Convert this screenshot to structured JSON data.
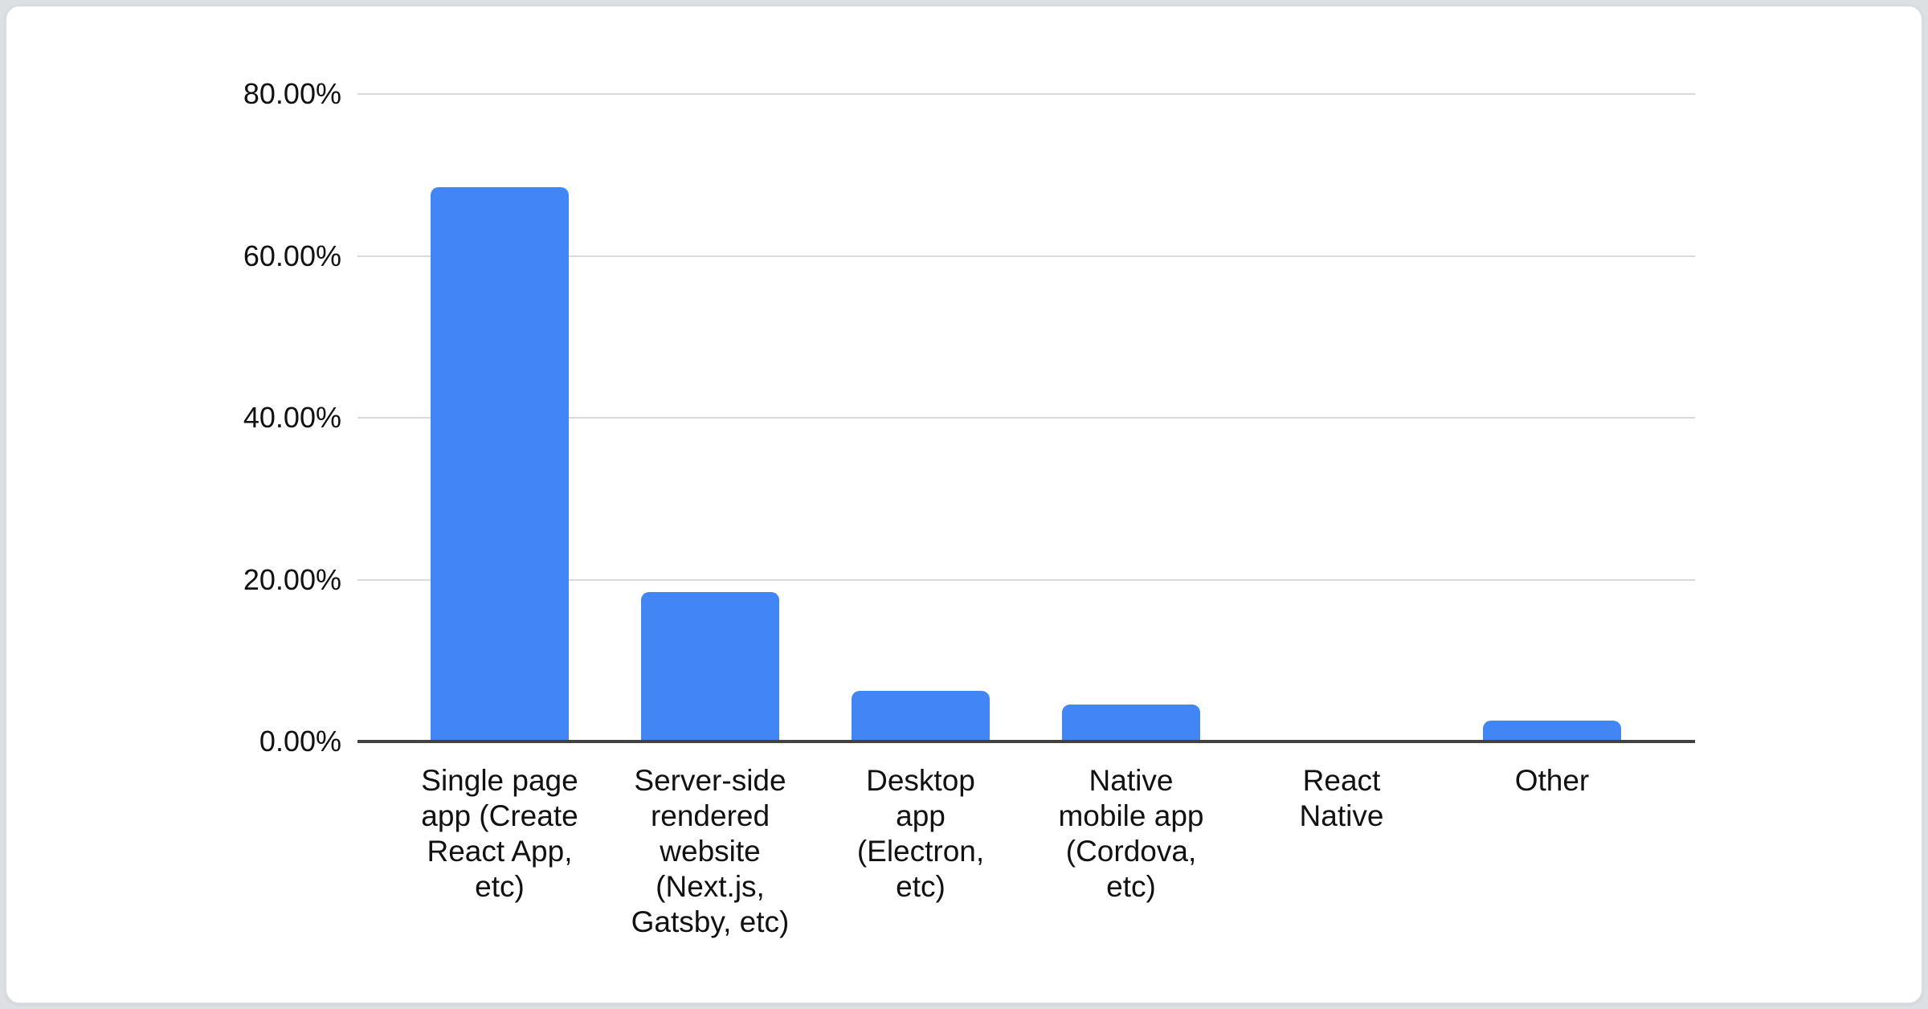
{
  "page": {
    "outer_background": "#dcdfe3",
    "card_background": "#ffffff",
    "card_border_color": "#d8dbde"
  },
  "chart_data": {
    "type": "bar",
    "title": "",
    "xlabel": "",
    "ylabel": "",
    "legend": "none",
    "grid": true,
    "ylim": [
      0,
      80
    ],
    "unit": "percent",
    "categories": [
      "Single page app (Create React App, etc)",
      "Server-side rendered website (Next.js, Gatsby, etc)",
      "Desktop app (Electron, etc)",
      "Native mobile app (Cordova, etc)",
      "React Native",
      "Other"
    ],
    "category_lines": [
      [
        "Single page",
        "app (Create",
        "React App,",
        "etc)"
      ],
      [
        "Server-side",
        "rendered",
        "website",
        "(Next.js,",
        "Gatsby, etc)"
      ],
      [
        "Desktop",
        "app",
        "(Electron,",
        "etc)"
      ],
      [
        "Native",
        "mobile app",
        "(Cordova,",
        "etc)"
      ],
      [
        "React",
        "Native"
      ],
      [
        "Other"
      ]
    ],
    "values": [
      68.5,
      18.5,
      6.3,
      4.6,
      0,
      2.6
    ],
    "y_ticks": [
      {
        "value": 80,
        "label": "80.00%"
      },
      {
        "value": 60,
        "label": "60.00%"
      },
      {
        "value": 40,
        "label": "40.00%"
      },
      {
        "value": 20,
        "label": "20.00%"
      },
      {
        "value": 0,
        "label": "0.00%"
      }
    ],
    "bar_color": "#4285f4",
    "gridline_color": "#d9d9d9",
    "axis_line_color": "#424242",
    "text_color": "#111111"
  }
}
